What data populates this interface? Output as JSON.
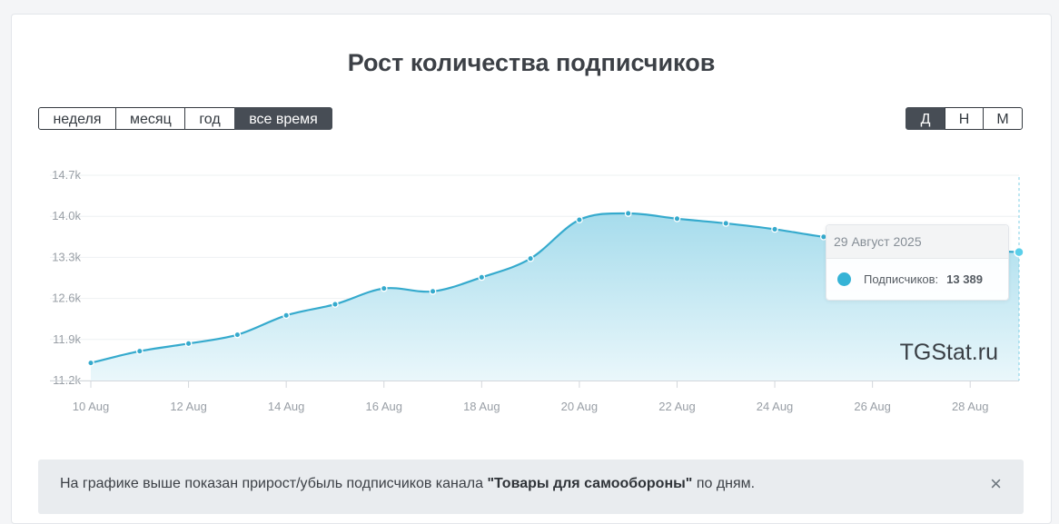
{
  "page": {
    "title": "Рост количества подписчиков",
    "range_buttons": [
      "неделя",
      "месяц",
      "год",
      "все время"
    ],
    "range_active": 3,
    "granularity_buttons": [
      "Д",
      "Н",
      "М"
    ],
    "granularity_active": 0,
    "watermark": "TGStat.ru",
    "notice": {
      "prefix": "На графике выше показан прирост/убыль подписчиков канала ",
      "channel": "\"Товары для самообороны\"",
      "suffix": " по дням.",
      "close_icon": "×"
    }
  },
  "tooltip": {
    "date": "29 Август 2025",
    "series_label": "Подписчиков:",
    "value": "13 389"
  },
  "colors": {
    "line": "#35aacd",
    "fill_top": "#a6dcec",
    "fill_bottom": "#eaf7fb",
    "highlight": "#5bcfea"
  },
  "chart_data": {
    "type": "area",
    "title": "Рост количества подписчиков",
    "xlabel": "",
    "ylabel": "",
    "x": [
      "10 Aug",
      "11 Aug",
      "12 Aug",
      "13 Aug",
      "14 Aug",
      "15 Aug",
      "16 Aug",
      "17 Aug",
      "18 Aug",
      "19 Aug",
      "20 Aug",
      "21 Aug",
      "22 Aug",
      "23 Aug",
      "24 Aug",
      "25 Aug",
      "26 Aug",
      "27 Aug",
      "28 Aug",
      "29 Aug"
    ],
    "x_ticks": [
      "10 Aug",
      "12 Aug",
      "14 Aug",
      "16 Aug",
      "18 Aug",
      "20 Aug",
      "22 Aug",
      "24 Aug",
      "26 Aug",
      "28 Aug"
    ],
    "series": [
      {
        "values": [
          11500,
          11700,
          11830,
          11980,
          12310,
          12500,
          12770,
          12720,
          12960,
          13280,
          13940,
          14050,
          13960,
          13880,
          13780,
          13650,
          13560,
          13490,
          13430,
          13389
        ]
      }
    ],
    "y_ticks": [
      "11.2k",
      "11.9k",
      "12.6k",
      "13.3k",
      "14.0k",
      "14.7k"
    ],
    "y_tick_values": [
      11200,
      11900,
      12600,
      13300,
      14000,
      14700
    ],
    "ylim": [
      11200,
      14700
    ],
    "grid": true,
    "highlighted_index": 19
  }
}
